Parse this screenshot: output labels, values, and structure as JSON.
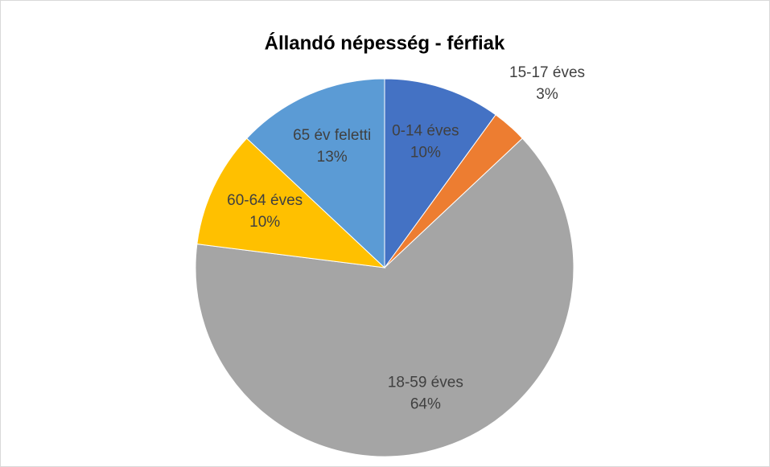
{
  "chart_data": {
    "type": "pie",
    "title": "Állandó népesség - férfiak",
    "categories": [
      "0-14 éves",
      "15-17 éves",
      "18-59 éves",
      "60-64 éves",
      "65 év feletti"
    ],
    "values": [
      10,
      3,
      64,
      10,
      13
    ],
    "value_labels": [
      "10%",
      "3%",
      "64%",
      "10%",
      "13%"
    ],
    "colors": [
      "#4472c4",
      "#ed7d31",
      "#a5a5a5",
      "#ffc000",
      "#5b9bd5"
    ]
  }
}
